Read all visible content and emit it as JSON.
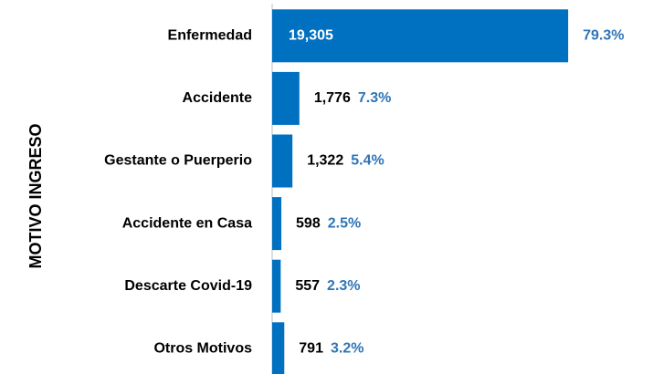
{
  "chart_data": {
    "type": "bar",
    "orientation": "horizontal",
    "y_axis_label": "MOTIVO INGRESO",
    "categories": [
      "Enfermedad",
      "Accidente",
      "Gestante o Puerperio",
      "Accidente en Casa",
      "Descarte Covid-19",
      "Otros Motivos"
    ],
    "values": [
      19305,
      1776,
      1322,
      598,
      557,
      791
    ],
    "value_labels": [
      "19,305",
      "1,776",
      "1,322",
      "598",
      "557",
      "791"
    ],
    "shares": [
      79.3,
      7.3,
      5.4,
      2.5,
      2.3,
      3.2
    ],
    "share_labels": [
      "79.3%",
      "7.3%",
      "5.4%",
      "2.5%",
      "2.3%",
      "3.2%"
    ],
    "color": "#0070c0",
    "share_color": "#2e75b6",
    "xlim": [
      0,
      21800
    ]
  }
}
